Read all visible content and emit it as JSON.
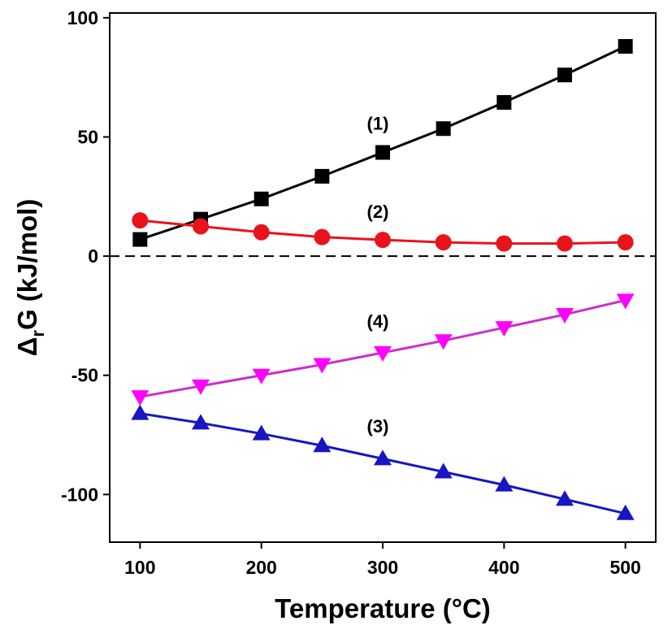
{
  "chart_data": {
    "type": "line",
    "xlabel": "Temperature (°C)",
    "ylabel_main": "Δ",
    "ylabel_sub": "r",
    "ylabel_rest": "G (kJ/mol)",
    "xlim": [
      75,
      525
    ],
    "ylim": [
      -120,
      102
    ],
    "x_ticks": [
      100,
      200,
      300,
      400,
      500
    ],
    "y_ticks": [
      100,
      50,
      0,
      -50,
      -100
    ],
    "x_tick_labels": [
      "100",
      "200",
      "300",
      "400",
      "500"
    ],
    "y_tick_labels": [
      "100",
      "50",
      "0",
      "-50",
      "-100"
    ],
    "reference_line": {
      "y": 0,
      "style": "dashed"
    },
    "x": [
      100,
      150,
      200,
      250,
      300,
      350,
      400,
      450,
      500
    ],
    "series": [
      {
        "name": "(1)",
        "marker": "square",
        "color": "#000000",
        "marker_color": "#000000",
        "values": [
          7,
          15.5,
          24,
          33.5,
          43.5,
          53.5,
          64.5,
          76,
          88
        ],
        "label_at": [
          300,
          53
        ]
      },
      {
        "name": "(2)",
        "marker": "circle",
        "color": "#e8141b",
        "marker_color": "#e8141b",
        "values": [
          15,
          12.5,
          10,
          8,
          6.8,
          5.8,
          5.3,
          5.3,
          5.8
        ],
        "label_at": [
          300,
          16
        ]
      },
      {
        "name": "(3)",
        "marker": "triangle-up",
        "color": "#1616c4",
        "marker_color": "#1616c4",
        "values": [
          -66,
          -70,
          -74.5,
          -79.5,
          -85,
          -90.5,
          -96,
          -102,
          -108
        ],
        "label_at": [
          300,
          -74
        ]
      },
      {
        "name": "(4)",
        "marker": "triangle-down",
        "color": "#cc2ecc",
        "marker_color": "#ff00ff",
        "values": [
          -59,
          -54.5,
          -50,
          -45.5,
          -40.5,
          -35.5,
          -30,
          -24.5,
          -18.5
        ],
        "label_at": [
          300,
          -30
        ]
      }
    ]
  }
}
